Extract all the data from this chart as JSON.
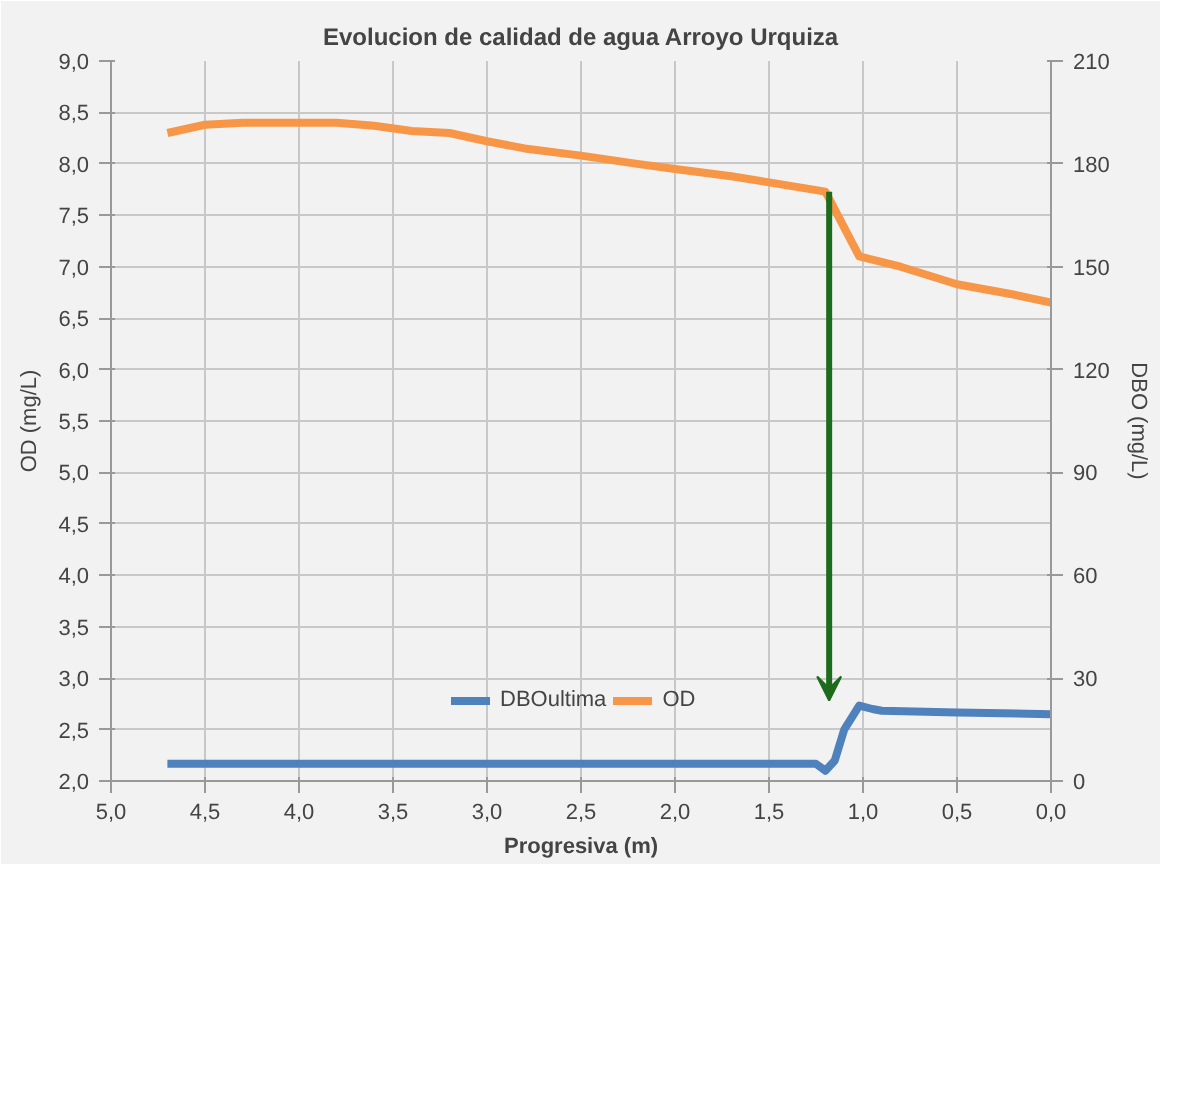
{
  "chart_data": {
    "type": "line",
    "title": "Evolucion de calidad de agua Arroyo Urquiza",
    "xlabel": "Progresiva (m)",
    "ylabel": "OD (mg/L)",
    "y2label": "DBO (mg/L)",
    "xlim": [
      5.0,
      0.0
    ],
    "xticks": [
      {
        "value": 5.0,
        "label": "5,0"
      },
      {
        "value": 4.5,
        "label": "4,5"
      },
      {
        "value": 4.0,
        "label": "4,0"
      },
      {
        "value": 3.5,
        "label": "3,5"
      },
      {
        "value": 3.0,
        "label": "3,0"
      },
      {
        "value": 2.5,
        "label": "2,5"
      },
      {
        "value": 2.0,
        "label": "2,0"
      },
      {
        "value": 1.5,
        "label": "1,5"
      },
      {
        "value": 1.0,
        "label": "1,0"
      },
      {
        "value": 0.5,
        "label": "0,5"
      },
      {
        "value": 0.0,
        "label": "0,0"
      }
    ],
    "ylim": [
      2.0,
      9.0
    ],
    "yticks": [
      {
        "value": 2.0,
        "label": "2,0"
      },
      {
        "value": 2.5,
        "label": "2,5"
      },
      {
        "value": 3.0,
        "label": "3,0"
      },
      {
        "value": 3.5,
        "label": "3,5"
      },
      {
        "value": 4.0,
        "label": "4,0"
      },
      {
        "value": 4.5,
        "label": "4,5"
      },
      {
        "value": 5.0,
        "label": "5,0"
      },
      {
        "value": 5.5,
        "label": "5,5"
      },
      {
        "value": 6.0,
        "label": "6,0"
      },
      {
        "value": 6.5,
        "label": "6,5"
      },
      {
        "value": 7.0,
        "label": "7,0"
      },
      {
        "value": 7.5,
        "label": "7,5"
      },
      {
        "value": 8.0,
        "label": "8,0"
      },
      {
        "value": 8.5,
        "label": "8,5"
      },
      {
        "value": 9.0,
        "label": "9,0"
      }
    ],
    "y2lim": [
      0,
      210
    ],
    "y2ticks": [
      0,
      30,
      60,
      90,
      120,
      150,
      180,
      210
    ],
    "series": [
      {
        "name": "DBOultima",
        "color": "#4f81bd",
        "axis": "y2",
        "x": [
          4.7,
          4.0,
          3.0,
          2.0,
          1.5,
          1.25,
          1.2,
          1.15,
          1.1,
          1.02,
          0.95,
          0.9,
          0.5,
          0.0
        ],
        "values": [
          5,
          5,
          5,
          5,
          5,
          5,
          3,
          6,
          15,
          22,
          21,
          20.5,
          20,
          19.5
        ]
      },
      {
        "name": "OD",
        "color": "#f79646",
        "x": [
          4.7,
          4.5,
          4.3,
          4.0,
          3.8,
          3.6,
          3.4,
          3.2,
          3.0,
          2.8,
          2.5,
          2.2,
          2.0,
          1.7,
          1.5,
          1.2,
          1.02,
          0.8,
          0.5,
          0.2,
          0.0
        ],
        "values": [
          8.3,
          8.38,
          8.4,
          8.4,
          8.4,
          8.37,
          8.32,
          8.3,
          8.22,
          8.15,
          8.08,
          8.0,
          7.95,
          7.88,
          7.82,
          7.73,
          7.1,
          7.0,
          6.83,
          6.73,
          6.65
        ]
      }
    ],
    "grid": true,
    "legend": "bottom",
    "marker": "none",
    "line_style": "solid"
  }
}
